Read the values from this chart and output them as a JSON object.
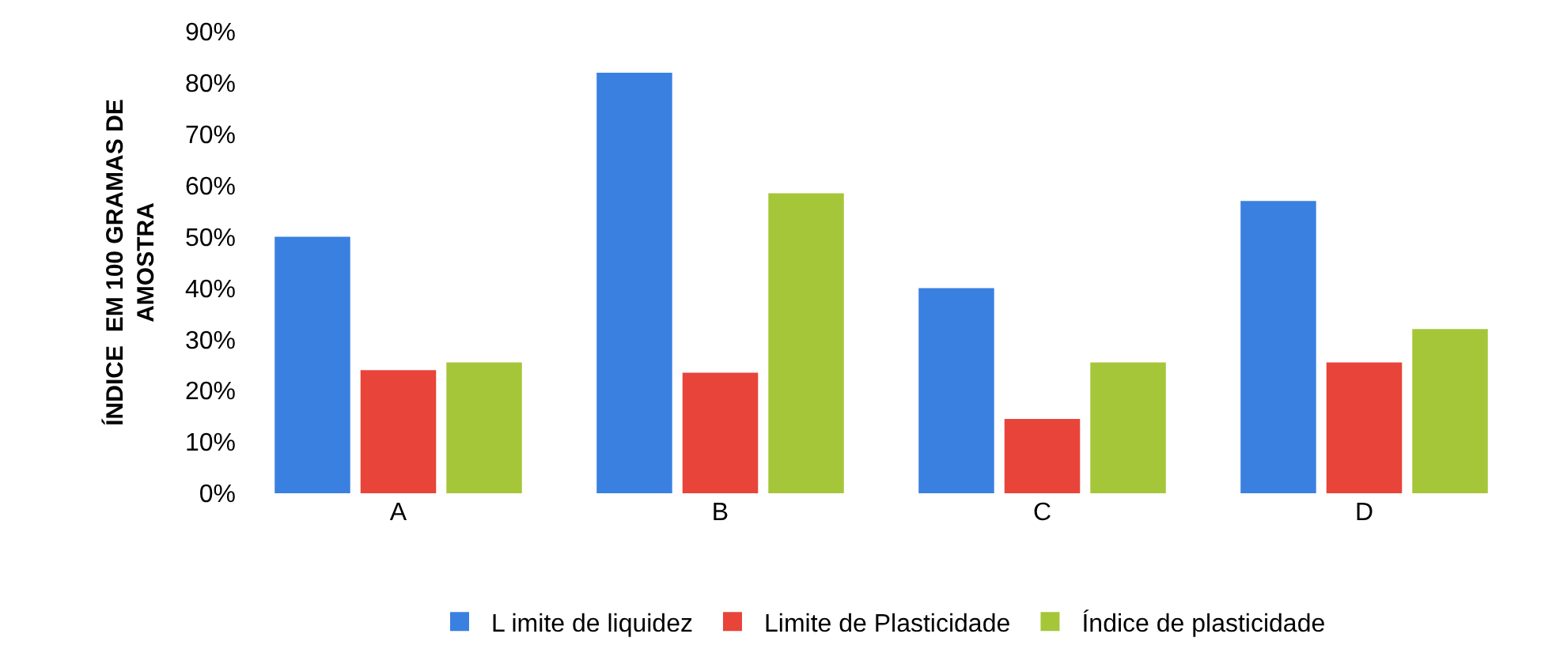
{
  "chart_data": {
    "type": "bar",
    "ylabel": "ÍNDICE  EM 100 GRAMAS DE AMOSTRA",
    "categories": [
      "A",
      "B",
      "C",
      "D"
    ],
    "series": [
      {
        "name": "L imite de liquidez",
        "color": "#3a80e0",
        "values": [
          50,
          82,
          40,
          57
        ]
      },
      {
        "name": "Limite de Plasticidade",
        "color": "#e8443a",
        "values": [
          24,
          23.5,
          14.5,
          25.5
        ]
      },
      {
        "name": "Índice de plasticidade",
        "color": "#a6c63a",
        "values": [
          25.5,
          58.5,
          25.5,
          32
        ]
      }
    ],
    "ylim": [
      0,
      90
    ],
    "yticks": [
      {
        "value": 0,
        "label": "0%"
      },
      {
        "value": 10,
        "label": "10%"
      },
      {
        "value": 20,
        "label": "20%"
      },
      {
        "value": 30,
        "label": "30%"
      },
      {
        "value": 40,
        "label": "40%"
      },
      {
        "value": 50,
        "label": "50%"
      },
      {
        "value": 60,
        "label": "60%"
      },
      {
        "value": 70,
        "label": "70%"
      },
      {
        "value": 80,
        "label": "80%"
      },
      {
        "value": 90,
        "label": "90%"
      }
    ],
    "grid": false,
    "legend": "bottom"
  }
}
